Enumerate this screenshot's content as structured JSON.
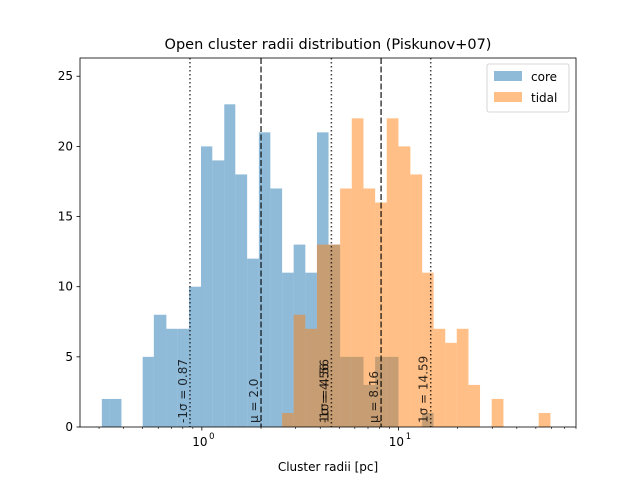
{
  "chart_data": {
    "type": "histogram",
    "title": "Open cluster radii distribution (Piskunov+07)",
    "xlabel": "Cluster radii [pc]",
    "ylabel": "",
    "xscale": "log",
    "xlim": [
      0.24,
      80
    ],
    "ylim": [
      0,
      26.3
    ],
    "y_ticks": [
      0,
      5,
      10,
      15,
      20,
      25
    ],
    "x_ticks": [
      {
        "value": 1,
        "label": "10",
        "exp": "0"
      },
      {
        "value": 10,
        "label": "10",
        "exp": "1"
      }
    ],
    "legend": {
      "position": "top-right"
    },
    "series": [
      {
        "name": "core",
        "color": "#1f77b4",
        "alpha": 0.5,
        "bins": [
          {
            "x0": 0.31,
            "x1": 0.34,
            "count": 2
          },
          {
            "x0": 0.34,
            "x1": 0.39,
            "count": 2
          },
          {
            "x0": 0.5,
            "x1": 0.57,
            "count": 5
          },
          {
            "x0": 0.57,
            "x1": 0.66,
            "count": 8
          },
          {
            "x0": 0.66,
            "x1": 0.75,
            "count": 7
          },
          {
            "x0": 0.75,
            "x1": 0.86,
            "count": 7
          },
          {
            "x0": 0.86,
            "x1": 0.99,
            "count": 10
          },
          {
            "x0": 0.99,
            "x1": 1.13,
            "count": 20
          },
          {
            "x0": 1.13,
            "x1": 1.3,
            "count": 19
          },
          {
            "x0": 1.3,
            "x1": 1.48,
            "count": 23
          },
          {
            "x0": 1.48,
            "x1": 1.7,
            "count": 18
          },
          {
            "x0": 1.7,
            "x1": 1.95,
            "count": 12
          },
          {
            "x0": 1.95,
            "x1": 2.23,
            "count": 21
          },
          {
            "x0": 2.23,
            "x1": 2.56,
            "count": 17
          },
          {
            "x0": 2.56,
            "x1": 2.93,
            "count": 11
          },
          {
            "x0": 2.93,
            "x1": 3.36,
            "count": 13
          },
          {
            "x0": 3.36,
            "x1": 3.85,
            "count": 11
          },
          {
            "x0": 3.85,
            "x1": 4.41,
            "count": 21
          },
          {
            "x0": 4.41,
            "x1": 5.05,
            "count": 13
          },
          {
            "x0": 5.05,
            "x1": 5.79,
            "count": 5
          },
          {
            "x0": 5.79,
            "x1": 6.64,
            "count": 5
          },
          {
            "x0": 6.64,
            "x1": 7.61,
            "count": 3
          },
          {
            "x0": 7.61,
            "x1": 8.72,
            "count": 5
          },
          {
            "x0": 8.72,
            "x1": 10.0,
            "count": 5
          },
          {
            "x0": 13.2,
            "x1": 15.1,
            "count": 1
          }
        ]
      },
      {
        "name": "tidal",
        "color": "#ff7f0e",
        "alpha": 0.5,
        "bins": [
          {
            "x0": 2.56,
            "x1": 2.93,
            "count": 1
          },
          {
            "x0": 2.93,
            "x1": 3.36,
            "count": 8
          },
          {
            "x0": 3.36,
            "x1": 3.85,
            "count": 7
          },
          {
            "x0": 3.85,
            "x1": 4.41,
            "count": 13
          },
          {
            "x0": 4.41,
            "x1": 5.05,
            "count": 13
          },
          {
            "x0": 5.05,
            "x1": 5.79,
            "count": 17
          },
          {
            "x0": 5.79,
            "x1": 6.64,
            "count": 22
          },
          {
            "x0": 6.64,
            "x1": 7.61,
            "count": 17
          },
          {
            "x0": 7.61,
            "x1": 8.72,
            "count": 16
          },
          {
            "x0": 8.72,
            "x1": 10.0,
            "count": 22
          },
          {
            "x0": 10.0,
            "x1": 11.5,
            "count": 20
          },
          {
            "x0": 11.5,
            "x1": 13.2,
            "count": 18
          },
          {
            "x0": 13.2,
            "x1": 15.1,
            "count": 11
          },
          {
            "x0": 15.1,
            "x1": 17.3,
            "count": 7
          },
          {
            "x0": 17.3,
            "x1": 19.8,
            "count": 6
          },
          {
            "x0": 19.8,
            "x1": 22.7,
            "count": 7
          },
          {
            "x0": 22.7,
            "x1": 26.0,
            "count": 3
          },
          {
            "x0": 29.8,
            "x1": 34.2,
            "count": 2
          },
          {
            "x0": 51.7,
            "x1": 59.3,
            "count": 1
          }
        ]
      }
    ],
    "reference_lines": [
      {
        "x": 0.87,
        "style": "dotted",
        "color": "#000000",
        "label": "-1σ = 0.87"
      },
      {
        "x": 2.0,
        "style": "dashed",
        "color": "#000000",
        "label": "μ = 2.0"
      },
      {
        "x": 4.56,
        "style": "dotted",
        "color": "#000000",
        "label": "1σ = 4.56"
      },
      {
        "x": 4.56,
        "style": "dotted",
        "color": "#000000",
        "label": "-1σ = 4.56"
      },
      {
        "x": 8.16,
        "style": "dashed",
        "color": "#000000",
        "label": "μ = 8.16"
      },
      {
        "x": 14.59,
        "style": "dotted",
        "color": "#000000",
        "label": "1σ = 14.59"
      }
    ]
  }
}
